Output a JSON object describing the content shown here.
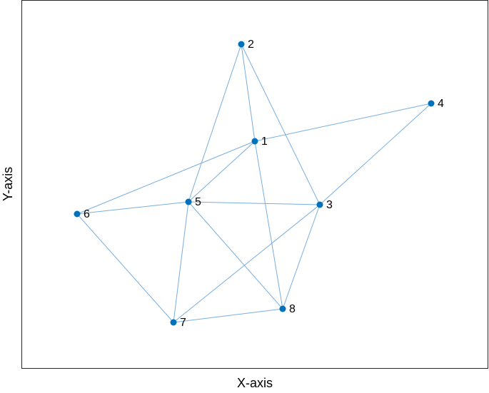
{
  "x_label": "X-axis",
  "y_label": "Y-axis",
  "nodes": [
    "1",
    "2",
    "3",
    "4",
    "5",
    "6",
    "7",
    "8"
  ]
}
